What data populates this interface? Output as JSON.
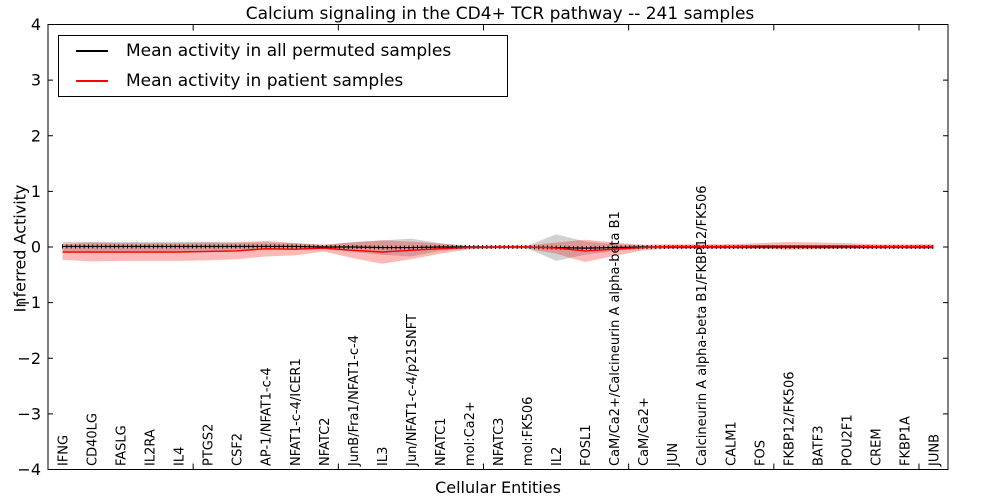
{
  "title": "Calcium signaling in the CD4+ TCR pathway -- 241 samples",
  "legend": {
    "entries": [
      {
        "label": "Mean activity in all permuted samples",
        "color": "#000000"
      },
      {
        "label": "Mean activity in patient samples",
        "color": "#ff0000"
      }
    ]
  },
  "chart_data": {
    "type": "line",
    "title": "Calcium signaling in the CD4+ TCR pathway -- 241 samples",
    "xlabel": "Cellular Entities",
    "ylabel": "Inferred Activity",
    "ylim": [
      -4,
      4
    ],
    "yticks": [
      4,
      3,
      2,
      1,
      0,
      -1,
      -2,
      -3,
      -4
    ],
    "ytick_labels": [
      "4",
      "3",
      "2",
      "1",
      "0",
      "−1",
      "−2",
      "−3",
      "−4"
    ],
    "xlim": [
      0,
      31
    ],
    "x_major_ticks": [
      0,
      5,
      10,
      15,
      20,
      25,
      30
    ],
    "grid": false,
    "legend_position": "upper left",
    "categories": [
      "IFNG",
      "CD40LG",
      "FASLG",
      "IL2RA",
      "IL4",
      "PTGS2",
      "CSF2",
      "AP-1/NFAT1-c-4",
      "NFAT1-c-4/ICER1",
      "NFATC2",
      "JunB/Fra1/NFAT1-c-4",
      "IL3",
      "Jun/NFAT1-c-4/p21SNFT",
      "NFATC1",
      "mol:Ca2+",
      "NFATC3",
      "mol:FK506",
      "IL2",
      "FOSL1",
      "CaM/Ca2+/Calcineurin A alpha-beta B1",
      "CaM/Ca2+",
      "JUN",
      "Calcineurin A alpha-beta B1/FKBP12/FK506",
      "CALM1",
      "FOS",
      "FKBP12/FK506",
      "BATF3",
      "POU2F1",
      "CREM",
      "FKBP1A",
      "JUNB"
    ],
    "series": [
      {
        "name": "Mean activity in all permuted samples",
        "color": "#000000",
        "band_color": "rgba(0,0,0,0.18)",
        "marker": "tick",
        "values": [
          0.01,
          0.01,
          0.01,
          0.01,
          0.01,
          0.01,
          0.01,
          0.01,
          0.01,
          0.0,
          0.0,
          -0.01,
          -0.01,
          0.0,
          0.0,
          0.0,
          0.0,
          -0.01,
          -0.02,
          -0.01,
          0.0,
          0.0,
          0.0,
          0.0,
          0.0,
          0.0,
          0.0,
          0.0,
          0.0,
          0.0,
          0.0
        ],
        "std": [
          0.08,
          0.08,
          0.08,
          0.08,
          0.08,
          0.08,
          0.07,
          0.07,
          0.06,
          0.04,
          0.09,
          0.13,
          0.16,
          0.07,
          0.02,
          0.02,
          0.02,
          0.24,
          0.12,
          0.06,
          0.03,
          0.03,
          0.03,
          0.03,
          0.03,
          0.03,
          0.03,
          0.03,
          0.03,
          0.03,
          0.04
        ]
      },
      {
        "name": "Mean activity in patient samples",
        "color": "#ff0000",
        "band_color": "rgba(255,0,0,0.28)",
        "marker": "none",
        "values": [
          -0.09,
          -0.09,
          -0.09,
          -0.09,
          -0.09,
          -0.08,
          -0.07,
          -0.03,
          -0.04,
          -0.02,
          -0.06,
          -0.09,
          -0.06,
          -0.03,
          -0.01,
          0.0,
          0.0,
          -0.02,
          -0.07,
          -0.04,
          -0.01,
          0.01,
          0.01,
          0.01,
          0.02,
          0.02,
          0.02,
          0.02,
          0.01,
          0.01,
          0.01
        ],
        "std": [
          0.14,
          0.17,
          0.16,
          0.16,
          0.16,
          0.16,
          0.15,
          0.14,
          0.11,
          0.06,
          0.14,
          0.21,
          0.16,
          0.09,
          0.03,
          0.03,
          0.03,
          0.1,
          0.2,
          0.12,
          0.05,
          0.04,
          0.04,
          0.04,
          0.05,
          0.07,
          0.06,
          0.05,
          0.04,
          0.04,
          0.04
        ]
      }
    ]
  },
  "axes": {
    "xlabel": "Cellular Entities",
    "ylabel": "Inferred Activity"
  }
}
